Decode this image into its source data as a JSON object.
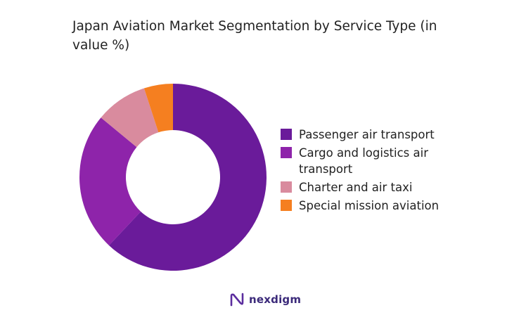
{
  "header": {
    "title": "Japan Aviation Market Segmentation by Service Type (in value %)"
  },
  "chart_data": {
    "type": "pie",
    "title": "Japan Aviation Market Segmentation by Service Type (in value %)",
    "categories": [
      "Passenger air transport",
      "Cargo and logistics air transport",
      "Charter and air taxi",
      "Special mission aviation"
    ],
    "values": [
      62,
      24,
      9,
      5
    ],
    "colors": [
      "#6a1b9a",
      "#8e24aa",
      "#d98b9e",
      "#f57f20"
    ],
    "donut": true,
    "legend": "right"
  },
  "brand": {
    "name": "nexdigm",
    "logo_icon": "nexdigm-logo-icon",
    "color": "#3b2a7a"
  }
}
